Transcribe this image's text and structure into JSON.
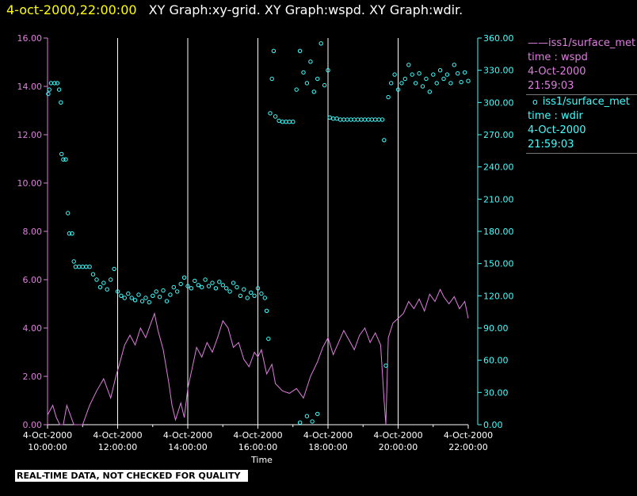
{
  "header": {
    "timestamp": "4-oct-2000,22:00:00",
    "graphs": "XY Graph:xy-grid.  XY Graph:wspd.  XY Graph:wdir."
  },
  "legend": {
    "wspd": {
      "marker": "——",
      "source": "iss1/surface_met",
      "field": "time : wspd",
      "date": "4-Oct-2000",
      "time": "21:59:03"
    },
    "wdir": {
      "marker": "o",
      "source": "iss1/surface_met",
      "field": "time : wdir",
      "date": "4-Oct-2000",
      "time": "21:59:03"
    }
  },
  "banner": "REAL-TIME DATA, NOT CHECKED FOR QUALITY",
  "colors": {
    "wspd": "#e07ee0",
    "wdir": "#40ffff",
    "grid": "#ffffff",
    "background": "#000000"
  },
  "chart_data": {
    "type": "line+scatter",
    "xlabel": "Time",
    "x_range_hours": [
      10,
      22
    ],
    "x_ticks": [
      {
        "h": 10,
        "date": "4-Oct-2000",
        "time": "10:00:00"
      },
      {
        "h": 12,
        "date": "4-Oct-2000",
        "time": "12:00:00"
      },
      {
        "h": 14,
        "date": "4-Oct-2000",
        "time": "14:00:00"
      },
      {
        "h": 16,
        "date": "4-Oct-2000",
        "time": "16:00:00"
      },
      {
        "h": 18,
        "date": "4-Oct-2000",
        "time": "18:00:00"
      },
      {
        "h": 20,
        "date": "4-Oct-2000",
        "time": "20:00:00"
      },
      {
        "h": 22,
        "date": "4-Oct-2000",
        "time": "22:00:00"
      }
    ],
    "grid_hours": [
      12,
      14,
      16,
      18,
      20
    ],
    "left_axis": {
      "series": "wspd",
      "ylim": [
        0,
        16
      ],
      "ticks": [
        "0.00",
        "2.00",
        "4.00",
        "6.00",
        "8.00",
        "10.00",
        "12.00",
        "14.00",
        "16.00"
      ]
    },
    "right_axis": {
      "series": "wdir",
      "ylim": [
        0,
        360
      ],
      "ticks": [
        "0.00",
        "30.00",
        "60.00",
        "90.00",
        "120.00",
        "150.00",
        "180.00",
        "210.00",
        "240.00",
        "270.00",
        "300.00",
        "330.00",
        "360.00"
      ]
    },
    "series": [
      {
        "name": "wspd",
        "style": "line",
        "axis": "left",
        "points": [
          [
            10.0,
            0.4
          ],
          [
            10.15,
            0.8
          ],
          [
            10.25,
            0.3
          ],
          [
            10.35,
            0.0
          ],
          [
            10.45,
            0.0
          ],
          [
            10.55,
            0.8
          ],
          [
            10.65,
            0.4
          ],
          [
            10.75,
            0.0
          ],
          [
            10.9,
            0.0
          ],
          [
            11.0,
            0.0
          ],
          [
            11.2,
            0.8
          ],
          [
            11.4,
            1.4
          ],
          [
            11.6,
            1.9
          ],
          [
            11.8,
            1.1
          ],
          [
            11.95,
            2.0
          ],
          [
            12.05,
            2.5
          ],
          [
            12.2,
            3.3
          ],
          [
            12.35,
            3.7
          ],
          [
            12.5,
            3.3
          ],
          [
            12.65,
            4.0
          ],
          [
            12.8,
            3.6
          ],
          [
            12.95,
            4.2
          ],
          [
            13.05,
            4.6
          ],
          [
            13.15,
            3.9
          ],
          [
            13.3,
            3.1
          ],
          [
            13.45,
            1.8
          ],
          [
            13.55,
            0.8
          ],
          [
            13.65,
            0.2
          ],
          [
            13.8,
            0.9
          ],
          [
            13.9,
            0.3
          ],
          [
            14.0,
            1.5
          ],
          [
            14.15,
            2.5
          ],
          [
            14.25,
            3.2
          ],
          [
            14.4,
            2.8
          ],
          [
            14.55,
            3.4
          ],
          [
            14.7,
            3.0
          ],
          [
            14.85,
            3.6
          ],
          [
            15.0,
            4.3
          ],
          [
            15.15,
            4.0
          ],
          [
            15.3,
            3.2
          ],
          [
            15.45,
            3.4
          ],
          [
            15.6,
            2.7
          ],
          [
            15.75,
            2.4
          ],
          [
            15.9,
            3.0
          ],
          [
            16.0,
            2.8
          ],
          [
            16.1,
            3.1
          ],
          [
            16.25,
            2.1
          ],
          [
            16.4,
            2.5
          ],
          [
            16.5,
            1.7
          ],
          [
            16.7,
            1.4
          ],
          [
            16.9,
            1.3
          ],
          [
            17.1,
            1.5
          ],
          [
            17.3,
            1.1
          ],
          [
            17.5,
            2.0
          ],
          [
            17.7,
            2.6
          ],
          [
            17.85,
            3.2
          ],
          [
            18.0,
            3.6
          ],
          [
            18.15,
            2.9
          ],
          [
            18.3,
            3.4
          ],
          [
            18.45,
            3.9
          ],
          [
            18.6,
            3.5
          ],
          [
            18.75,
            3.1
          ],
          [
            18.9,
            3.7
          ],
          [
            19.05,
            4.0
          ],
          [
            19.2,
            3.4
          ],
          [
            19.35,
            3.8
          ],
          [
            19.5,
            3.3
          ],
          [
            19.6,
            1.0
          ],
          [
            19.65,
            0.0
          ],
          [
            19.72,
            3.6
          ],
          [
            19.85,
            4.2
          ],
          [
            20.0,
            4.4
          ],
          [
            20.15,
            4.6
          ],
          [
            20.3,
            5.1
          ],
          [
            20.45,
            4.8
          ],
          [
            20.6,
            5.2
          ],
          [
            20.75,
            4.7
          ],
          [
            20.9,
            5.4
          ],
          [
            21.05,
            5.1
          ],
          [
            21.2,
            5.6
          ],
          [
            21.3,
            5.3
          ],
          [
            21.45,
            5.0
          ],
          [
            21.6,
            5.3
          ],
          [
            21.75,
            4.8
          ],
          [
            21.9,
            5.1
          ],
          [
            22.0,
            4.4
          ]
        ]
      },
      {
        "name": "wdir",
        "style": "markers",
        "axis": "right",
        "points": [
          [
            10.02,
            308
          ],
          [
            10.05,
            312
          ],
          [
            10.1,
            318
          ],
          [
            10.2,
            318
          ],
          [
            10.28,
            318
          ],
          [
            10.33,
            312
          ],
          [
            10.38,
            300
          ],
          [
            10.4,
            252
          ],
          [
            10.45,
            247
          ],
          [
            10.52,
            247
          ],
          [
            10.58,
            197
          ],
          [
            10.62,
            178
          ],
          [
            10.7,
            178
          ],
          [
            10.75,
            152
          ],
          [
            10.8,
            147
          ],
          [
            10.9,
            147
          ],
          [
            11.0,
            147
          ],
          [
            11.1,
            147
          ],
          [
            11.2,
            147
          ],
          [
            11.3,
            140
          ],
          [
            11.4,
            135
          ],
          [
            11.5,
            128
          ],
          [
            11.6,
            132
          ],
          [
            11.7,
            126
          ],
          [
            11.8,
            135
          ],
          [
            11.9,
            145
          ],
          [
            12.0,
            124
          ],
          [
            12.1,
            120
          ],
          [
            12.2,
            118
          ],
          [
            12.3,
            122
          ],
          [
            12.4,
            118
          ],
          [
            12.5,
            116
          ],
          [
            12.6,
            121
          ],
          [
            12.7,
            115
          ],
          [
            12.8,
            118
          ],
          [
            12.9,
            114
          ],
          [
            13.0,
            120
          ],
          [
            13.1,
            124
          ],
          [
            13.2,
            119
          ],
          [
            13.3,
            125
          ],
          [
            13.4,
            115
          ],
          [
            13.5,
            121
          ],
          [
            13.6,
            128
          ],
          [
            13.7,
            124
          ],
          [
            13.8,
            131
          ],
          [
            13.9,
            137
          ],
          [
            14.0,
            129
          ],
          [
            14.1,
            127
          ],
          [
            14.2,
            134
          ],
          [
            14.3,
            130
          ],
          [
            14.4,
            128
          ],
          [
            14.5,
            135
          ],
          [
            14.6,
            129
          ],
          [
            14.7,
            132
          ],
          [
            14.8,
            127
          ],
          [
            14.9,
            133
          ],
          [
            15.0,
            130
          ],
          [
            15.1,
            127
          ],
          [
            15.2,
            124
          ],
          [
            15.3,
            132
          ],
          [
            15.4,
            128
          ],
          [
            15.5,
            120
          ],
          [
            15.6,
            126
          ],
          [
            15.7,
            118
          ],
          [
            15.8,
            123
          ],
          [
            15.9,
            120
          ],
          [
            16.0,
            127
          ],
          [
            16.1,
            122
          ],
          [
            16.2,
            118
          ],
          [
            16.25,
            106
          ],
          [
            16.3,
            80
          ],
          [
            16.35,
            290
          ],
          [
            16.4,
            322
          ],
          [
            16.45,
            348
          ],
          [
            16.5,
            287
          ],
          [
            16.6,
            283
          ],
          [
            16.7,
            282
          ],
          [
            16.8,
            282
          ],
          [
            16.9,
            282
          ],
          [
            17.0,
            282
          ],
          [
            17.1,
            312
          ],
          [
            17.2,
            348
          ],
          [
            17.3,
            328
          ],
          [
            17.4,
            318
          ],
          [
            17.5,
            338
          ],
          [
            17.6,
            310
          ],
          [
            17.7,
            322
          ],
          [
            17.8,
            355
          ],
          [
            17.9,
            316
          ],
          [
            18.0,
            330
          ],
          [
            18.05,
            286
          ],
          [
            18.15,
            285
          ],
          [
            18.25,
            285
          ],
          [
            18.35,
            284
          ],
          [
            18.45,
            284
          ],
          [
            18.55,
            284
          ],
          [
            18.65,
            284
          ],
          [
            18.75,
            284
          ],
          [
            18.85,
            284
          ],
          [
            18.95,
            284
          ],
          [
            19.05,
            284
          ],
          [
            19.15,
            284
          ],
          [
            19.25,
            284
          ],
          [
            19.35,
            284
          ],
          [
            19.45,
            284
          ],
          [
            19.55,
            284
          ],
          [
            19.6,
            265
          ],
          [
            19.65,
            55
          ],
          [
            19.72,
            305
          ],
          [
            19.8,
            318
          ],
          [
            19.9,
            326
          ],
          [
            20.0,
            312
          ],
          [
            20.1,
            318
          ],
          [
            20.2,
            322
          ],
          [
            20.3,
            335
          ],
          [
            20.4,
            326
          ],
          [
            20.5,
            318
          ],
          [
            20.6,
            327
          ],
          [
            20.7,
            315
          ],
          [
            20.8,
            322
          ],
          [
            20.9,
            310
          ],
          [
            21.0,
            326
          ],
          [
            21.1,
            318
          ],
          [
            21.2,
            330
          ],
          [
            21.3,
            322
          ],
          [
            21.4,
            326
          ],
          [
            21.5,
            318
          ],
          [
            21.6,
            335
          ],
          [
            21.7,
            327
          ],
          [
            21.8,
            319
          ],
          [
            21.9,
            328
          ],
          [
            22.0,
            320
          ]
        ],
        "scattered_low": [
          [
            17.2,
            2
          ],
          [
            17.4,
            8
          ],
          [
            17.55,
            3
          ],
          [
            17.7,
            10
          ]
        ]
      }
    ]
  }
}
